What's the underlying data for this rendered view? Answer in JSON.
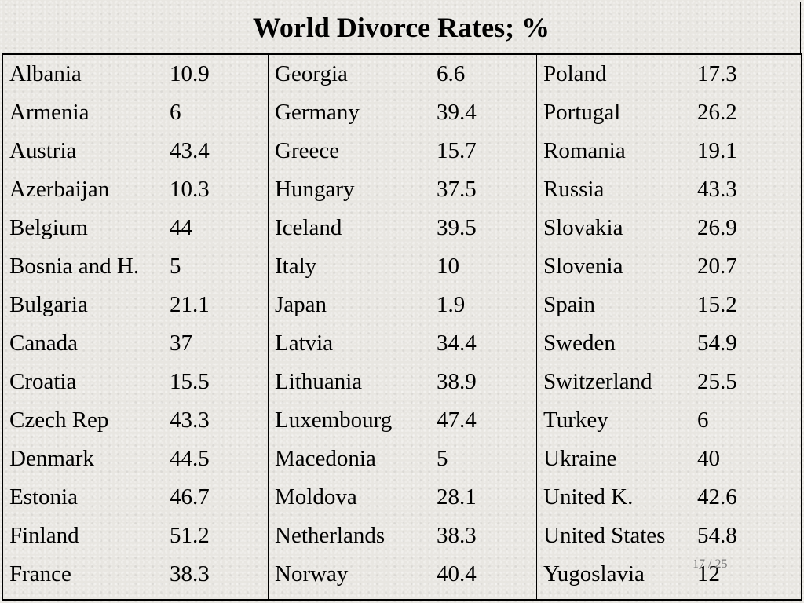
{
  "title": "World Divorce Rates; %",
  "columns": [
    {
      "rows": [
        {
          "country": "Albania",
          "rate": "10.9"
        },
        {
          "country": "Armenia",
          "rate": "6"
        },
        {
          "country": "Austria",
          "rate": "43.4"
        },
        {
          "country": "Azerbaijan",
          "rate": "10.3"
        },
        {
          "country": "Belgium",
          "rate": "44"
        },
        {
          "country": "Bosnia and H.",
          "rate": "5"
        },
        {
          "country": "Bulgaria",
          "rate": "21.1"
        },
        {
          "country": "Canada",
          "rate": "37"
        },
        {
          "country": "Croatia",
          "rate": "15.5"
        },
        {
          "country": "Czech Rep",
          "rate": "43.3"
        },
        {
          "country": "Denmark",
          "rate": "44.5"
        },
        {
          "country": "Estonia",
          "rate": "46.7"
        },
        {
          "country": "Finland",
          "rate": "51.2"
        },
        {
          "country": "France",
          "rate": "38.3"
        }
      ]
    },
    {
      "rows": [
        {
          "country": "Georgia",
          "rate": "6.6"
        },
        {
          "country": "Germany",
          "rate": "39.4"
        },
        {
          "country": "Greece",
          "rate": "15.7"
        },
        {
          "country": "Hungary",
          "rate": "37.5"
        },
        {
          "country": "Iceland",
          "rate": "39.5"
        },
        {
          "country": "Italy",
          "rate": "10"
        },
        {
          "country": "Japan",
          "rate": "1.9"
        },
        {
          "country": "Latvia",
          "rate": "34.4"
        },
        {
          "country": "Lithuania",
          "rate": "38.9"
        },
        {
          "country": "Luxembourg",
          "rate": "47.4"
        },
        {
          "country": "Macedonia",
          "rate": "5"
        },
        {
          "country": "Moldova",
          "rate": "28.1"
        },
        {
          "country": "Netherlands",
          "rate": "38.3"
        },
        {
          "country": "Norway",
          "rate": "40.4"
        }
      ]
    },
    {
      "rows": [
        {
          "country": "Poland",
          "rate": "17.3"
        },
        {
          "country": "Portugal",
          "rate": "26.2"
        },
        {
          "country": "Romania",
          "rate": "19.1"
        },
        {
          "country": "Russia",
          "rate": "43.3"
        },
        {
          "country": "Slovakia",
          "rate": "26.9"
        },
        {
          "country": "Slovenia",
          "rate": "20.7"
        },
        {
          "country": "Spain",
          "rate": "15.2"
        },
        {
          "country": "Sweden",
          "rate": "54.9"
        },
        {
          "country": "Switzerland",
          "rate": "25.5"
        },
        {
          "country": "Turkey",
          "rate": "6"
        },
        {
          "country": "Ukraine",
          "rate": "40"
        },
        {
          "country": "United K.",
          "rate": "42.6"
        },
        {
          "country": "United States",
          "rate": "54.8"
        },
        {
          "country": "Yugoslavia",
          "rate": "12"
        }
      ]
    }
  ],
  "page_number": "17 / 25"
}
